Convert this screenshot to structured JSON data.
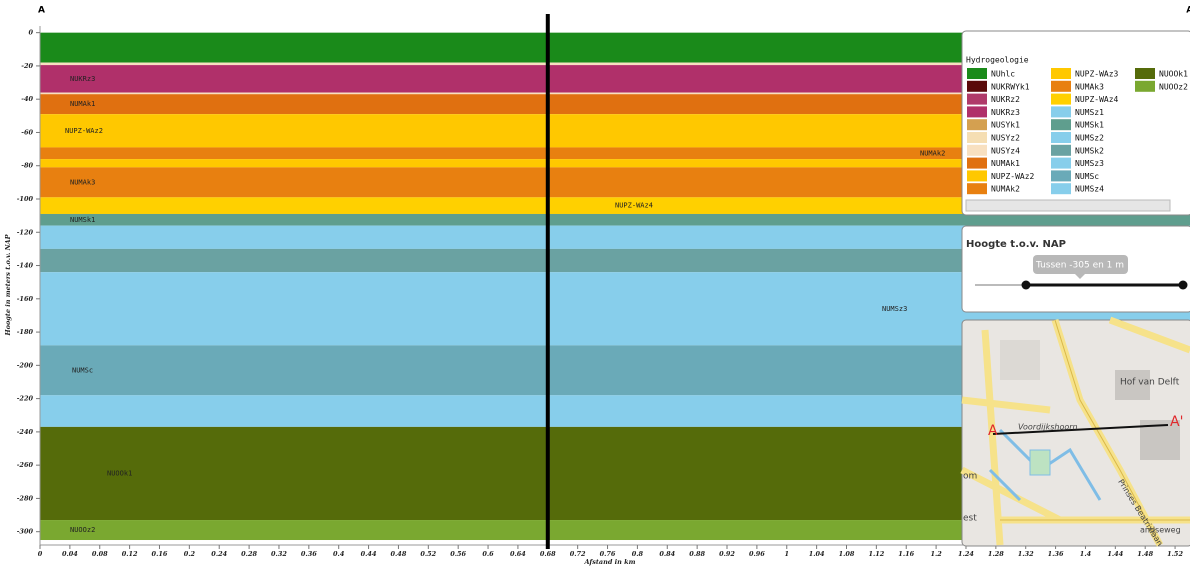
{
  "chart_data": {
    "type": "section",
    "title": "A",
    "title_end": "A'",
    "ylabel": "Hoogte in meters t.o.v. NAP",
    "xlabel": "Afstand in km",
    "xlim": [
      0,
      1.54
    ],
    "ylim": [
      -308,
      4
    ],
    "xticks": [
      0,
      0.04,
      0.08,
      0.12,
      0.16,
      0.2,
      0.24,
      0.28,
      0.32,
      0.36,
      0.4,
      0.44,
      0.48,
      0.52,
      0.56,
      0.6,
      0.64,
      0.68,
      0.72,
      0.76,
      0.8,
      0.84,
      0.88,
      0.92,
      0.96,
      1,
      1.04,
      1.08,
      1.12,
      1.16,
      1.2,
      1.24,
      1.28,
      1.32,
      1.36,
      1.4,
      1.44,
      1.48,
      1.52
    ],
    "yticks": [
      0,
      -20,
      -40,
      -60,
      -80,
      -100,
      -120,
      -140,
      -160,
      -180,
      -200,
      -220,
      -240,
      -260,
      -280,
      -300
    ],
    "cursor_x": 0.68,
    "layers": [
      {
        "name": null,
        "color": "#1a8a1a",
        "top": 0,
        "bottom": -18
      },
      {
        "name": null,
        "color": "#f8e0c0",
        "top": -18,
        "bottom": -19.5
      },
      {
        "name": "NUKRz3",
        "color": "#b0306a",
        "top": -19.5,
        "bottom": -36
      },
      {
        "name": null,
        "color": "#f8e0c0",
        "top": -36,
        "bottom": -37
      },
      {
        "name": "NUMAk1",
        "color": "#e07010",
        "top": -37,
        "bottom": -49
      },
      {
        "name": "NUPZ-WAz2",
        "color": "#ffc800",
        "top": -49,
        "bottom": -69
      },
      {
        "name": "NUMAk2",
        "color": "#e88010",
        "top": -69,
        "bottom": -76
      },
      {
        "name": null,
        "color": "#ffc800",
        "top": -76,
        "bottom": -81
      },
      {
        "name": "NUMAk3",
        "color": "#e88010",
        "top": -81,
        "bottom": -99
      },
      {
        "name": "NUPZ-WAz4",
        "color": "#ffd000",
        "top": -99,
        "bottom": -109
      },
      {
        "name": "NUMSk1",
        "color": "#5f9e8e",
        "top": -109,
        "bottom": -116
      },
      {
        "name": null,
        "color": "#87ceeb",
        "top": -116,
        "bottom": -130
      },
      {
        "name": null,
        "color": "#6aa2a2",
        "top": -130,
        "bottom": -144
      },
      {
        "name": "NUMSz3",
        "color": "#87ceeb",
        "top": -144,
        "bottom": -188
      },
      {
        "name": "NUMSc",
        "color": "#6aaab8",
        "top": -188,
        "bottom": -218
      },
      {
        "name": null,
        "color": "#87ceeb",
        "top": -218,
        "bottom": -237
      },
      {
        "name": "NUOOk1",
        "color": "#556b0a",
        "top": -237,
        "bottom": -293
      },
      {
        "name": "NUOOz2",
        "color": "#7aa830",
        "top": -293,
        "bottom": -305
      }
    ]
  },
  "legend": {
    "title": "Hydrogeologie",
    "items": [
      {
        "name": "NUhlc",
        "color": "#1a8a1a"
      },
      {
        "name": "NUKRWYk1",
        "color": "#5a0a0a"
      },
      {
        "name": "NUKRz2",
        "color": "#b03a6a"
      },
      {
        "name": "NUKRz3",
        "color": "#b0306a"
      },
      {
        "name": "NUSYk1",
        "color": "#d4a050"
      },
      {
        "name": "NUSYz2",
        "color": "#f5deb3"
      },
      {
        "name": "NUSYz4",
        "color": "#f8e0c0"
      },
      {
        "name": "NUMAk1",
        "color": "#e07010"
      },
      {
        "name": "NUPZ-WAz2",
        "color": "#ffc800"
      },
      {
        "name": "NUMAk2",
        "color": "#e88010"
      },
      {
        "name": "NUPZ-WAz3",
        "color": "#ffc800"
      },
      {
        "name": "NUMAk3",
        "color": "#e88010"
      },
      {
        "name": "NUPZ-WAz4",
        "color": "#ffd000"
      },
      {
        "name": "NUMSz1",
        "color": "#87ceeb"
      },
      {
        "name": "NUMSk1",
        "color": "#5f9e8e"
      },
      {
        "name": "NUMSz2",
        "color": "#87ceeb"
      },
      {
        "name": "NUMSk2",
        "color": "#6aa2a2"
      },
      {
        "name": "NUMSz3",
        "color": "#87ceeb"
      },
      {
        "name": "NUMSc",
        "color": "#6aaab8"
      },
      {
        "name": "NUMSz4",
        "color": "#87ceeb"
      },
      {
        "name": "NUOOk1",
        "color": "#556b0a"
      },
      {
        "name": "NUOOz2",
        "color": "#7aa830"
      }
    ]
  },
  "height_filter": {
    "title": "Hoogte t.o.v. NAP",
    "tooltip": "Tussen -305 en 1 m"
  },
  "map": {
    "start": "A",
    "end": "A'",
    "labels": [
      "Hof van Delft",
      "Voordijkshoorn",
      "Prinses Beatrixlaan",
      "andseweg",
      "om",
      "est"
    ]
  }
}
